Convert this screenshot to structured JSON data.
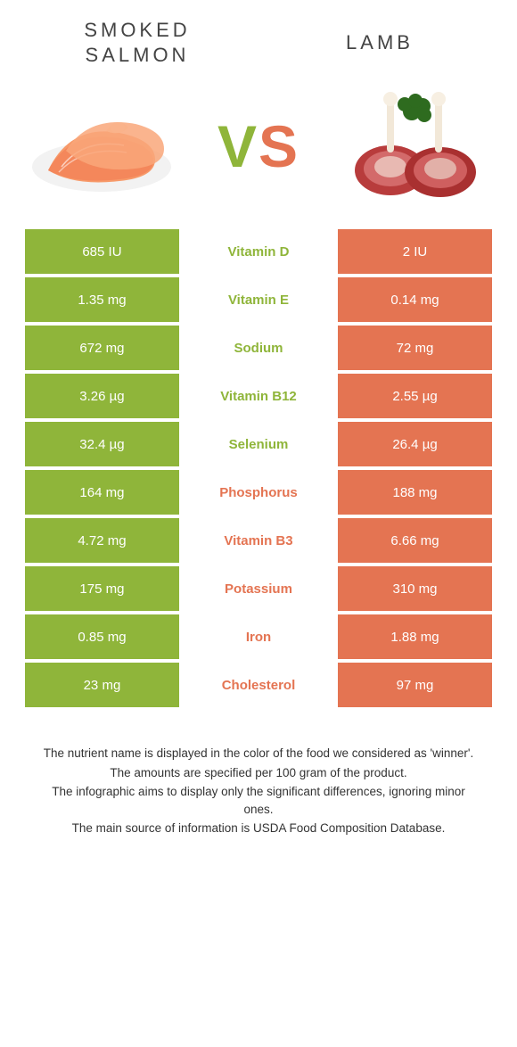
{
  "colors": {
    "salmon_bg": "#8fb53a",
    "lamb_bg": "#e47452",
    "salmon_txt": "#8fb53a",
    "lamb_txt": "#e47452",
    "white": "#ffffff"
  },
  "header": {
    "left_title": "SMOKED SALMON",
    "right_title": "LAMB",
    "vs_v": "V",
    "vs_s": "S"
  },
  "rows": [
    {
      "nutrient": "Vitamin D",
      "left": "685 IU",
      "right": "2 IU",
      "winner": "salmon"
    },
    {
      "nutrient": "Vitamin E",
      "left": "1.35 mg",
      "right": "0.14 mg",
      "winner": "salmon"
    },
    {
      "nutrient": "Sodium",
      "left": "672 mg",
      "right": "72 mg",
      "winner": "salmon"
    },
    {
      "nutrient": "Vitamin B12",
      "left": "3.26 µg",
      "right": "2.55 µg",
      "winner": "salmon"
    },
    {
      "nutrient": "Selenium",
      "left": "32.4 µg",
      "right": "26.4 µg",
      "winner": "salmon"
    },
    {
      "nutrient": "Phosphorus",
      "left": "164 mg",
      "right": "188 mg",
      "winner": "lamb"
    },
    {
      "nutrient": "Vitamin B3",
      "left": "4.72 mg",
      "right": "6.66 mg",
      "winner": "lamb"
    },
    {
      "nutrient": "Potassium",
      "left": "175 mg",
      "right": "310 mg",
      "winner": "lamb"
    },
    {
      "nutrient": "Iron",
      "left": "0.85 mg",
      "right": "1.88 mg",
      "winner": "lamb"
    },
    {
      "nutrient": "Cholesterol",
      "left": "23 mg",
      "right": "97 mg",
      "winner": "lamb"
    }
  ],
  "footer": {
    "l1": "The nutrient name is displayed in the color of the food we considered as 'winner'.",
    "l2": "The amounts are specified per 100 gram of the product.",
    "l3": "The infographic aims to display only the significant differences, ignoring minor ones.",
    "l4": "The main source of information is USDA Food Composition Database."
  }
}
